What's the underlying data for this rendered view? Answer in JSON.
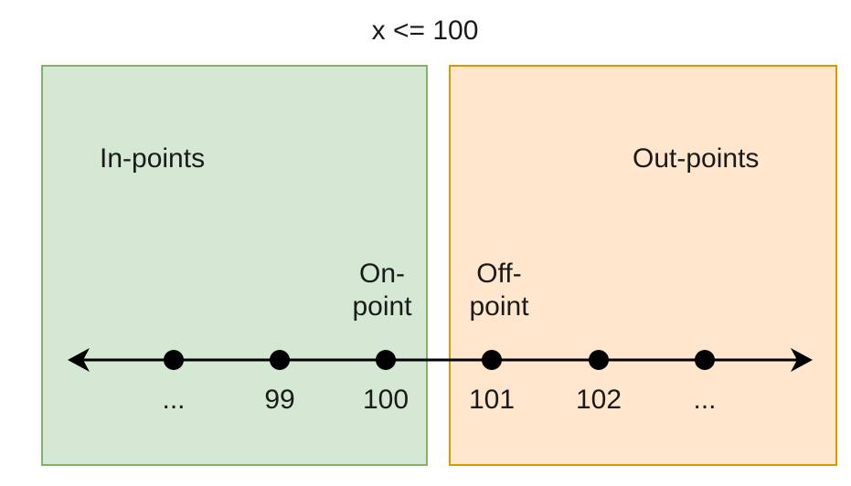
{
  "title": "x <= 100",
  "regions": {
    "in": {
      "label": "In-points",
      "fill": "#d5e8d4",
      "stroke": "#82b366"
    },
    "out": {
      "label": "Out-points",
      "fill": "#ffe6cc",
      "stroke": "#d79b00"
    }
  },
  "point_labels": {
    "on_point": "On-\npoint",
    "off_point": "Off-\npoint"
  },
  "number_line": {
    "ticks": [
      "...",
      "99",
      "100",
      "101",
      "102",
      "..."
    ],
    "line_color": "#000000"
  }
}
